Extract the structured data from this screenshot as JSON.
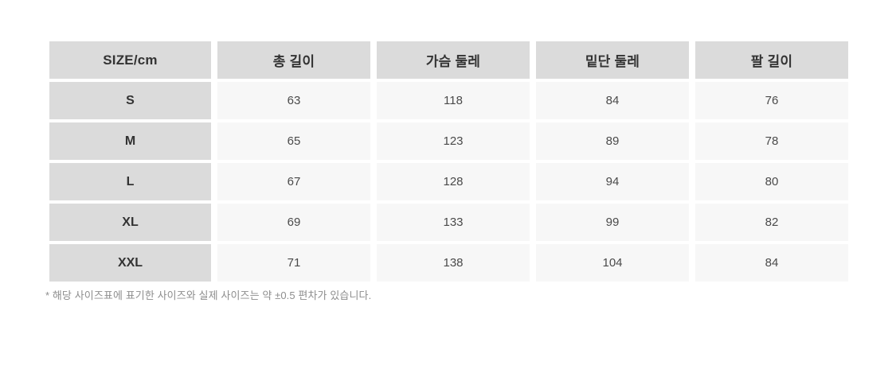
{
  "chart_data": {
    "type": "table",
    "columns": [
      "SIZE/cm",
      "총 길이",
      "가슴 둘레",
      "밑단 둘레",
      "팔 길이"
    ],
    "rows": [
      {
        "size": "S",
        "values": [
          "63",
          "118",
          "84",
          "76"
        ]
      },
      {
        "size": "M",
        "values": [
          "65",
          "123",
          "89",
          "78"
        ]
      },
      {
        "size": "L",
        "values": [
          "67",
          "128",
          "94",
          "80"
        ]
      },
      {
        "size": "XL",
        "values": [
          "69",
          "133",
          "99",
          "82"
        ]
      },
      {
        "size": "XXL",
        "values": [
          "71",
          "138",
          "104",
          "84"
        ]
      }
    ],
    "layout": {
      "header_background": "#dbdbdb",
      "row_label_background": "#dbdbdb",
      "cell_background": "#f7f7f7",
      "page_background": "#ffffff",
      "text_color": "#333333"
    }
  },
  "footnote": "* 해당 사이즈표에 표기한 사이즈와 실제 사이즈는 약 ±0.5 편차가 있습니다."
}
